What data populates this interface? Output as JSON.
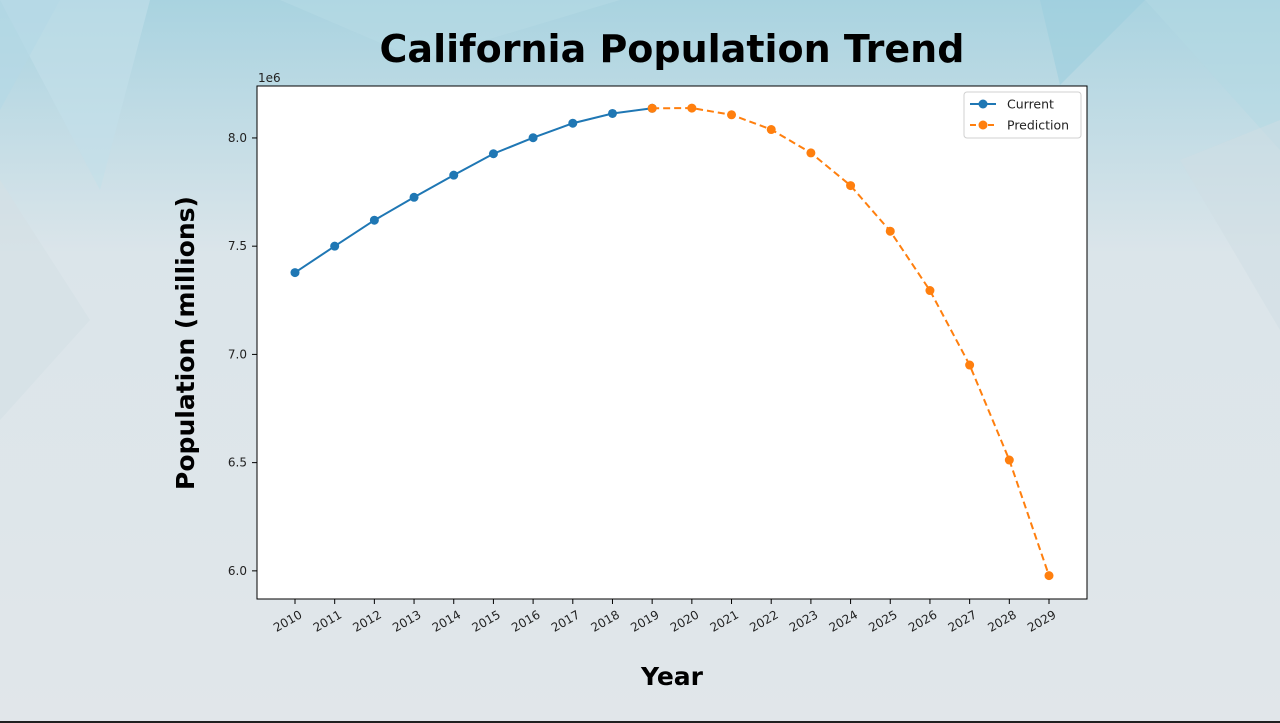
{
  "colors": {
    "current": "#1f77b4",
    "prediction": "#ff7f0e",
    "background_top": "#a9d3e0",
    "background_bottom": "#e1e6ea"
  },
  "chart_data": {
    "type": "line",
    "title": "California Population Trend",
    "xlabel": "Year",
    "ylabel": "Population (millions)",
    "y_offset_label": "1e6",
    "ylim": [
      5.87,
      8.24
    ],
    "yticks": [
      6.0,
      6.5,
      7.0,
      7.5,
      8.0
    ],
    "ytick_labels": [
      "6.0",
      "6.5",
      "7.0",
      "7.5",
      "8.0"
    ],
    "x": [
      "2010",
      "2011",
      "2012",
      "2013",
      "2014",
      "2015",
      "2016",
      "2017",
      "2018",
      "2019",
      "2020",
      "2021",
      "2022",
      "2023",
      "2024",
      "2025",
      "2026",
      "2027",
      "2028",
      "2029"
    ],
    "grid": false,
    "legend_position": "top-right",
    "series": [
      {
        "name": "Current",
        "style": "solid",
        "marker": "circle",
        "color": "#1f77b4",
        "x": [
          "2010",
          "2011",
          "2012",
          "2013",
          "2014",
          "2015",
          "2016",
          "2017",
          "2018",
          "2019"
        ],
        "values": [
          7.378,
          7.5,
          7.62,
          7.726,
          7.828,
          7.927,
          8.001,
          8.068,
          8.113,
          8.137
        ]
      },
      {
        "name": "Prediction",
        "style": "dashed",
        "marker": "circle",
        "color": "#ff7f0e",
        "x": [
          "2019",
          "2020",
          "2021",
          "2022",
          "2023",
          "2024",
          "2025",
          "2026",
          "2027",
          "2028",
          "2029"
        ],
        "values": [
          8.137,
          8.138,
          8.107,
          8.039,
          7.931,
          7.78,
          7.569,
          7.295,
          6.951,
          6.512,
          5.978
        ]
      }
    ]
  }
}
